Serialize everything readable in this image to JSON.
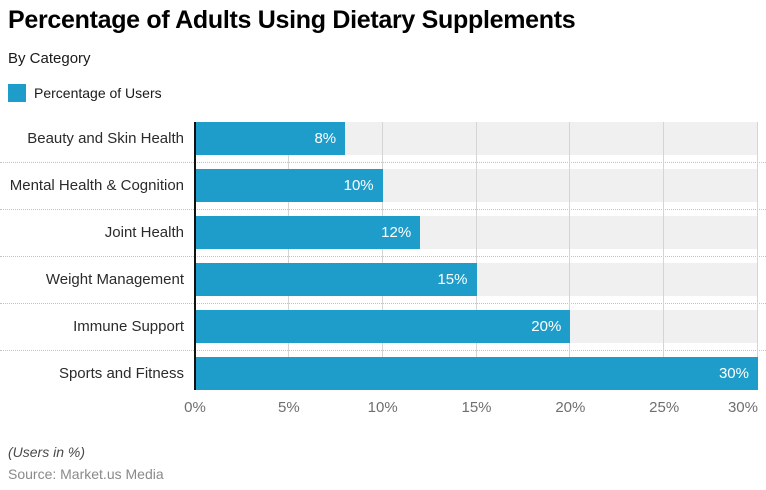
{
  "title": "Percentage of Adults Using Dietary Supplements",
  "subtitle": "By Category",
  "legend": {
    "label": "Percentage of Users",
    "swatch_color": "#1f9dca"
  },
  "chart_data": {
    "type": "bar",
    "orientation": "horizontal",
    "title": "Percentage of Adults Using Dietary Supplements",
    "subtitle": "By Category",
    "series_name": "Percentage of Users",
    "categories": [
      "Beauty and Skin Health",
      "Mental Health & Cognition",
      "Joint Health",
      "Weight Management",
      "Immune Support",
      "Sports and Fitness"
    ],
    "values": [
      8,
      10,
      12,
      15,
      20,
      30
    ],
    "value_labels": [
      "8%",
      "10%",
      "12%",
      "15%",
      "20%",
      "30%"
    ],
    "xlim": [
      0,
      30
    ],
    "x_ticks": [
      "0%",
      "5%",
      "10%",
      "15%",
      "20%",
      "25%",
      "30%"
    ],
    "x_tick_values": [
      0,
      5,
      10,
      15,
      20,
      25,
      30
    ],
    "grid": true,
    "legend_position": "top-left",
    "bar_color": "#1f9dca",
    "band_color": "#f0f0f0",
    "gridline_color": "#d5d5d5",
    "axis_color": "#111111",
    "value_label_color": "#ffffff"
  },
  "footer": {
    "note": "(Users in %)",
    "source": "Source: Market.us Media"
  }
}
